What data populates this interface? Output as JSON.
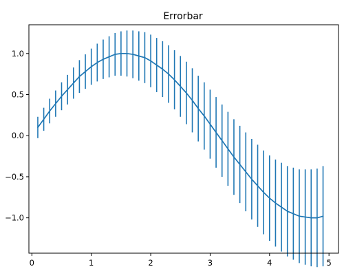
{
  "chart_data": {
    "type": "line",
    "title": "Errorbar",
    "xlabel": "",
    "ylabel": "",
    "xlim": [
      -0.05,
      5.16
    ],
    "ylim": [
      -1.43,
      1.35
    ],
    "xticks": [
      {
        "value": 0,
        "label": "0"
      },
      {
        "value": 1,
        "label": "1"
      },
      {
        "value": 2,
        "label": "2"
      },
      {
        "value": 3,
        "label": "3"
      },
      {
        "value": 4,
        "label": "4"
      },
      {
        "value": 5,
        "label": "5"
      }
    ],
    "yticks": [
      {
        "value": -1.0,
        "label": "−1.0"
      },
      {
        "value": -0.5,
        "label": "−0.5"
      },
      {
        "value": 0.0,
        "label": "0.0"
      },
      {
        "value": 0.5,
        "label": "0.5"
      },
      {
        "value": 1.0,
        "label": "1.0"
      }
    ],
    "grid": false,
    "series": [
      {
        "color": "#1f77b4",
        "x": [
          0.1,
          0.2,
          0.3,
          0.4,
          0.5,
          0.6,
          0.7,
          0.8,
          0.9,
          1.0,
          1.1,
          1.2,
          1.3,
          1.4,
          1.5,
          1.6,
          1.7,
          1.8,
          1.9,
          2.0,
          2.1,
          2.2,
          2.3,
          2.4,
          2.5,
          2.6,
          2.7,
          2.8,
          2.9,
          3.0,
          3.1,
          3.2,
          3.3,
          3.4,
          3.5,
          3.6,
          3.7,
          3.8,
          3.9,
          4.0,
          4.1,
          4.2,
          4.3,
          4.4,
          4.5,
          4.6,
          4.7,
          4.8,
          4.9
        ],
        "y": [
          0.1,
          0.2,
          0.3,
          0.39,
          0.48,
          0.56,
          0.64,
          0.72,
          0.78,
          0.84,
          0.89,
          0.93,
          0.96,
          0.99,
          1.0,
          1.0,
          0.99,
          0.97,
          0.95,
          0.91,
          0.86,
          0.81,
          0.75,
          0.68,
          0.6,
          0.52,
          0.43,
          0.33,
          0.24,
          0.14,
          0.04,
          -0.06,
          -0.16,
          -0.26,
          -0.35,
          -0.44,
          -0.53,
          -0.61,
          -0.69,
          -0.76,
          -0.82,
          -0.87,
          -0.92,
          -0.95,
          -0.98,
          -0.99,
          -1.0,
          -1.0,
          -0.98
        ],
        "yerr": [
          0.13,
          0.14,
          0.15,
          0.16,
          0.17,
          0.18,
          0.19,
          0.2,
          0.21,
          0.22,
          0.23,
          0.24,
          0.25,
          0.26,
          0.27,
          0.28,
          0.29,
          0.3,
          0.31,
          0.32,
          0.33,
          0.34,
          0.35,
          0.36,
          0.37,
          0.38,
          0.39,
          0.4,
          0.41,
          0.42,
          0.43,
          0.44,
          0.45,
          0.46,
          0.47,
          0.48,
          0.49,
          0.5,
          0.51,
          0.52,
          0.53,
          0.54,
          0.55,
          0.56,
          0.57,
          0.58,
          0.59,
          0.6,
          0.61
        ]
      }
    ]
  }
}
